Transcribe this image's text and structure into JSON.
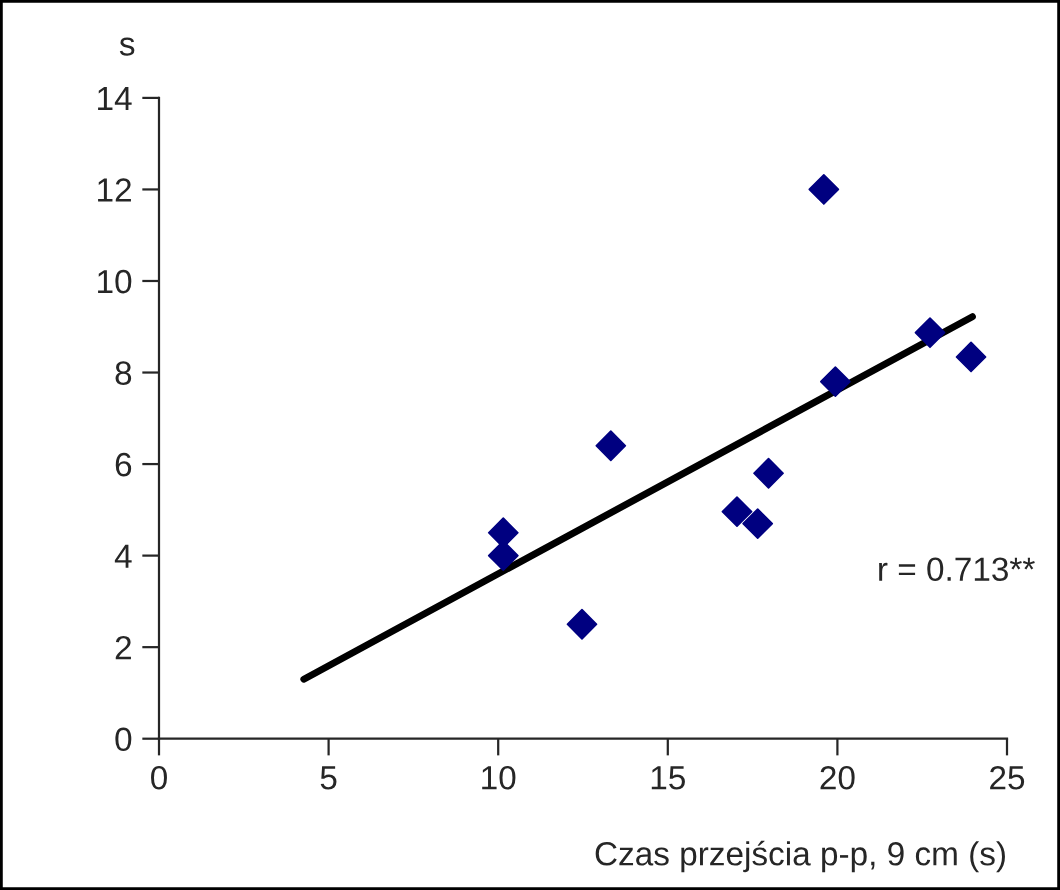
{
  "chart_data": {
    "type": "scatter",
    "xlabel": "Czas przejścia p-p, 9 cm (s)",
    "ylabel": "s",
    "series": [
      {
        "color": "#000080",
        "marker": "diamond",
        "x": [
          10.15,
          10.15,
          12.47,
          13.32,
          17.04,
          17.65,
          17.97,
          19.6,
          19.94,
          22.73,
          23.94
        ],
        "values": [
          4.5,
          4.0,
          2.5,
          6.4,
          4.96,
          4.7,
          5.8,
          12.0,
          7.8,
          8.87,
          8.34
        ]
      },
      {
        "type": "line",
        "color": "#000000",
        "marker": "none",
        "x": [
          4.27,
          23.98
        ],
        "values": [
          1.3,
          9.22
        ]
      }
    ],
    "annotations": [
      "r = 0.713**"
    ],
    "xlim": [
      0,
      25
    ],
    "xticks": [
      0,
      5,
      10,
      15,
      20,
      25
    ],
    "ylim": [
      0,
      14
    ],
    "yticks": [
      0,
      2,
      4,
      6,
      8,
      10,
      12,
      14
    ],
    "grid": false,
    "legend": false
  }
}
